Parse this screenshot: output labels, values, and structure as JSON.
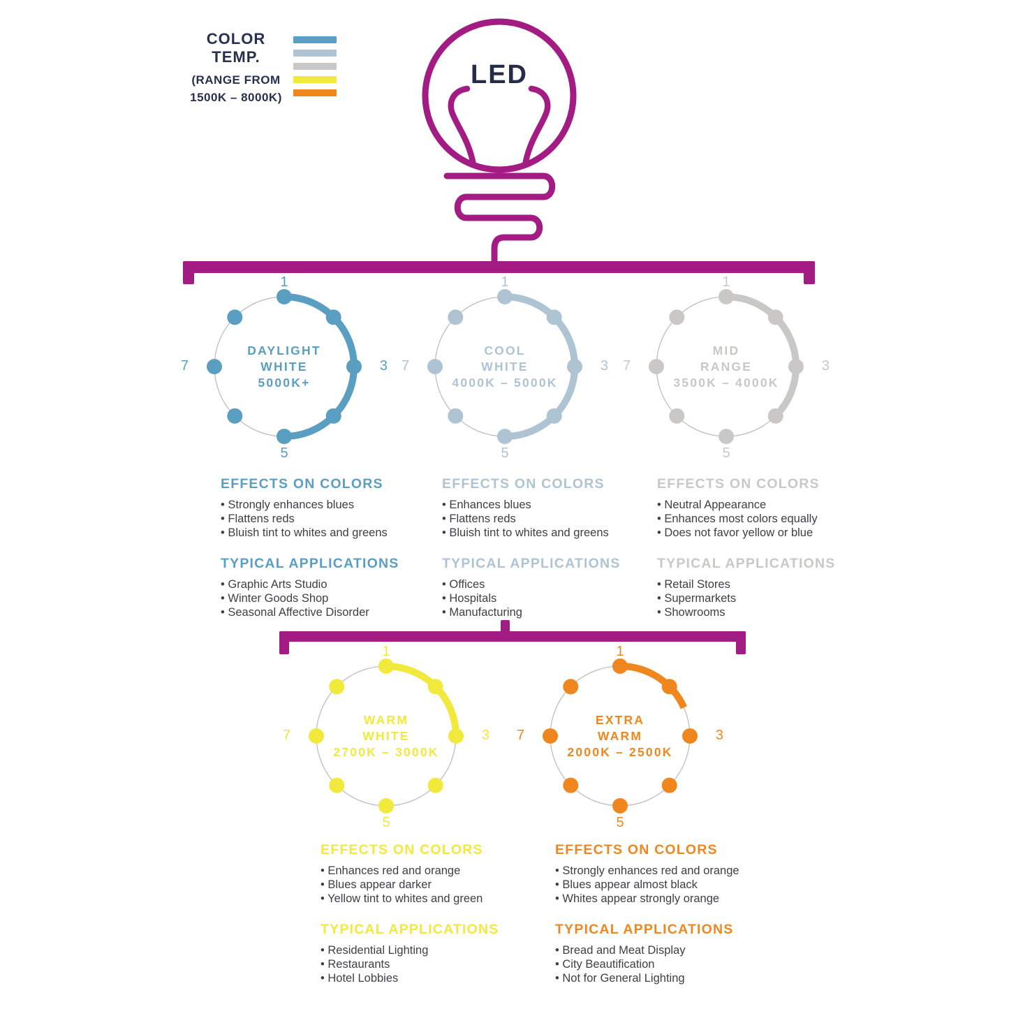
{
  "connector_color": "#A31C83",
  "legend": {
    "title": "COLOR TEMP.",
    "subtitle_line1": "(RANGE FROM",
    "subtitle_line2": "1500K – 8000K)",
    "text_color": "#27304E",
    "swatches": [
      {
        "name": "daylight-white",
        "color": "#5A9EC2"
      },
      {
        "name": "cool-white",
        "color": "#AEC4D2"
      },
      {
        "name": "mid-range",
        "color": "#C9C8C6"
      },
      {
        "name": "warm-white",
        "color": "#F1E93C"
      },
      {
        "name": "extra-warm",
        "color": "#F0871E"
      }
    ]
  },
  "bulb": {
    "label": "LED",
    "outline_color": "#A31C83",
    "label_color": "#252C48"
  },
  "scale_labels": [
    "1",
    "3",
    "5",
    "7"
  ],
  "categories": [
    {
      "id": "daylight-white",
      "color": "#5A9EC2",
      "title_lines": [
        "DAYLIGHT",
        "WHITE",
        "5000K+"
      ],
      "arc_sweep_deg": 180,
      "effects_heading": "EFFECTS ON COLORS",
      "effects": [
        "Strongly enhances blues",
        "Flattens reds",
        "Bluish tint to whites and greens"
      ],
      "applications_heading": "TYPICAL APPLICATIONS",
      "applications": [
        "Graphic Arts Studio",
        "Winter Goods Shop",
        "Seasonal Affective Disorder"
      ]
    },
    {
      "id": "cool-white",
      "color": "#AEC4D2",
      "title_lines": [
        "COOL",
        "WHITE",
        "4000K – 5000K"
      ],
      "arc_sweep_deg": 180,
      "effects_heading": "EFFECTS ON COLORS",
      "effects": [
        "Enhances blues",
        "Flattens reds",
        "Bluish tint to whites and greens"
      ],
      "applications_heading": "TYPICAL APPLICATIONS",
      "applications": [
        "Offices",
        "Hospitals",
        "Manufacturing"
      ]
    },
    {
      "id": "mid-range",
      "color": "#C9C8C6",
      "title_lines": [
        "MID",
        "RANGE",
        "3500K – 4000K"
      ],
      "arc_sweep_deg": 135,
      "effects_heading": "EFFECTS ON COLORS",
      "effects": [
        "Neutral Appearance",
        "Enhances most colors equally",
        "Does not favor yellow or blue"
      ],
      "applications_heading": "TYPICAL APPLICATIONS",
      "applications": [
        "Retail Stores",
        "Supermarkets",
        "Showrooms"
      ]
    },
    {
      "id": "warm-white",
      "color": "#F1E93C",
      "title_lines": [
        "WARM",
        "WHITE",
        "2700K – 3000K"
      ],
      "arc_sweep_deg": 90,
      "effects_heading": "EFFECTS ON COLORS",
      "effects": [
        "Enhances red and orange",
        "Blues appear darker",
        "Yellow tint to whites and green"
      ],
      "applications_heading": "TYPICAL APPLICATIONS",
      "applications": [
        "Residential Lighting",
        "Restaurants",
        "Hotel Lobbies"
      ]
    },
    {
      "id": "extra-warm",
      "color": "#F0871E",
      "title_lines": [
        "EXTRA",
        "WARM",
        "2000K – 2500K"
      ],
      "arc_sweep_deg": 66,
      "effects_heading": "EFFECTS ON COLORS",
      "effects": [
        "Strongly enhances red and orange",
        "Blues appear almost black",
        "Whites appear strongly orange"
      ],
      "applications_heading": "TYPICAL APPLICATIONS",
      "applications": [
        "Bread and Meat Display",
        "City Beautification",
        "Not for General Lighting"
      ]
    }
  ]
}
